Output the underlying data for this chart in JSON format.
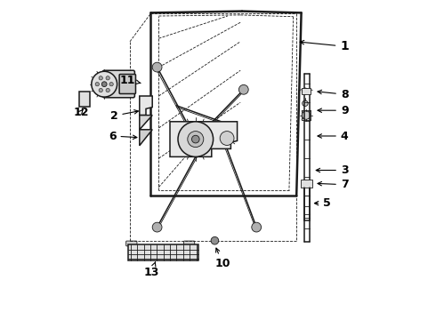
{
  "bg_color": "#ffffff",
  "line_color": "#1a1a1a",
  "label_color": "#000000",
  "label_positions": {
    "1": [
      0.895,
      0.845,
      0.735,
      0.855
    ],
    "2": [
      0.185,
      0.64,
      0.265,
      0.635
    ],
    "3": [
      0.895,
      0.49,
      0.83,
      0.465
    ],
    "4": [
      0.895,
      0.57,
      0.84,
      0.565
    ],
    "5": [
      0.83,
      0.38,
      0.825,
      0.36
    ],
    "6": [
      0.18,
      0.58,
      0.265,
      0.575
    ],
    "7": [
      0.895,
      0.415,
      0.84,
      0.42
    ],
    "8": [
      0.895,
      0.69,
      0.85,
      0.7
    ],
    "9": [
      0.895,
      0.645,
      0.855,
      0.65
    ],
    "10": [
      0.52,
      0.175,
      0.49,
      0.235
    ],
    "11": [
      0.225,
      0.735,
      0.275,
      0.74
    ],
    "12": [
      0.08,
      0.65,
      0.115,
      0.645
    ],
    "13": [
      0.29,
      0.145,
      0.295,
      0.195
    ]
  },
  "lw_thick": 1.8,
  "lw_med": 1.1,
  "lw_thin": 0.6
}
